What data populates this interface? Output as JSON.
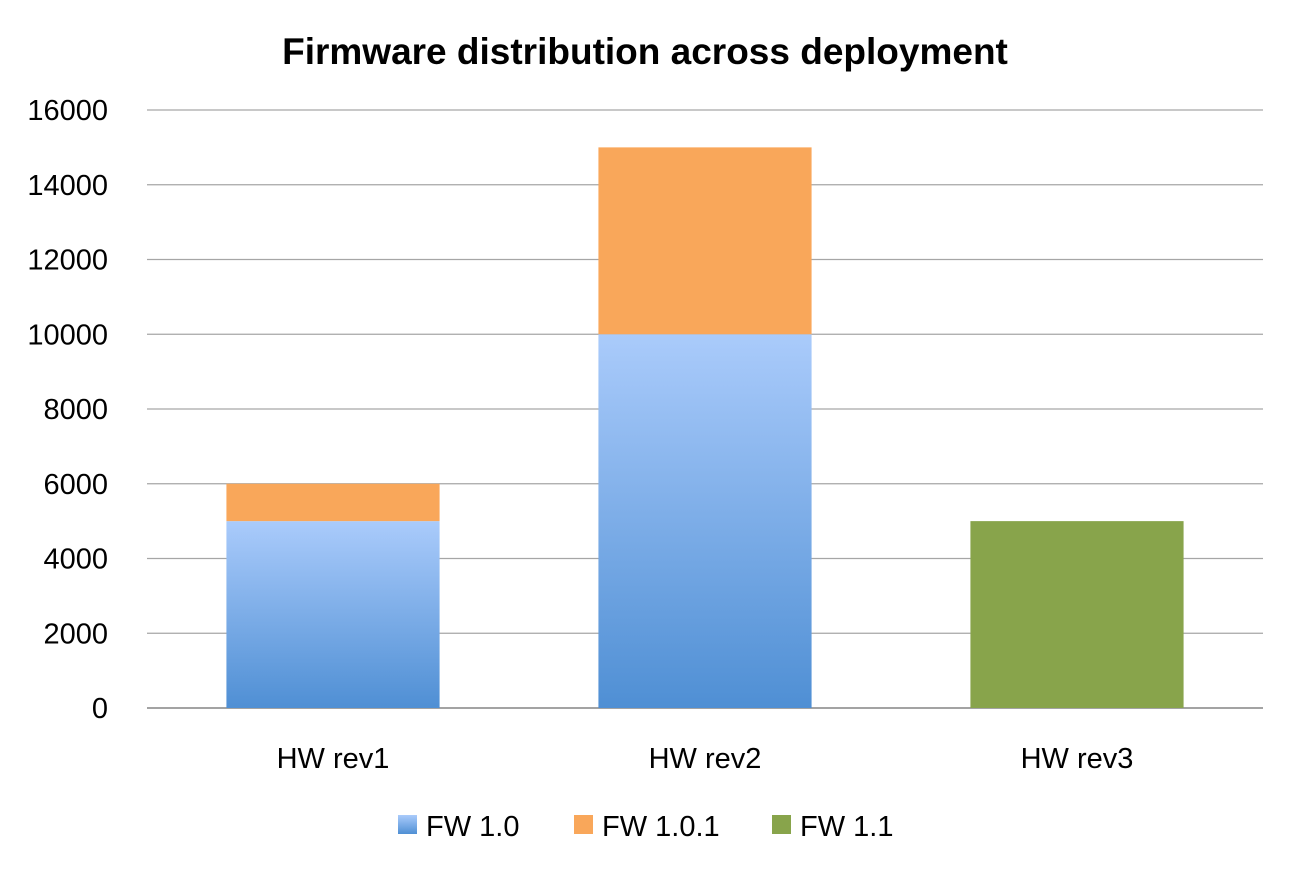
{
  "chart_data": {
    "type": "bar",
    "stacked": true,
    "title": "Firmware distribution across deployment",
    "xlabel": "",
    "ylabel": "",
    "categories": [
      "HW rev1",
      "HW rev2",
      "HW rev3"
    ],
    "series": [
      {
        "name": "FW 1.0",
        "values": [
          5000,
          10000,
          0
        ],
        "color": "#4f8fd4",
        "color_light": "#aacbfb"
      },
      {
        "name": "FW 1.0.1",
        "values": [
          1000,
          5000,
          0
        ],
        "color": "#f9a75a"
      },
      {
        "name": "FW 1.1",
        "values": [
          0,
          0,
          5000
        ],
        "color": "#88a44b"
      }
    ],
    "ylim": [
      0,
      16000
    ],
    "yticks": [
      "0",
      "2000",
      "4000",
      "6000",
      "8000",
      "10000",
      "12000",
      "14000",
      "16000"
    ],
    "grid": true,
    "legend": "bottom"
  }
}
